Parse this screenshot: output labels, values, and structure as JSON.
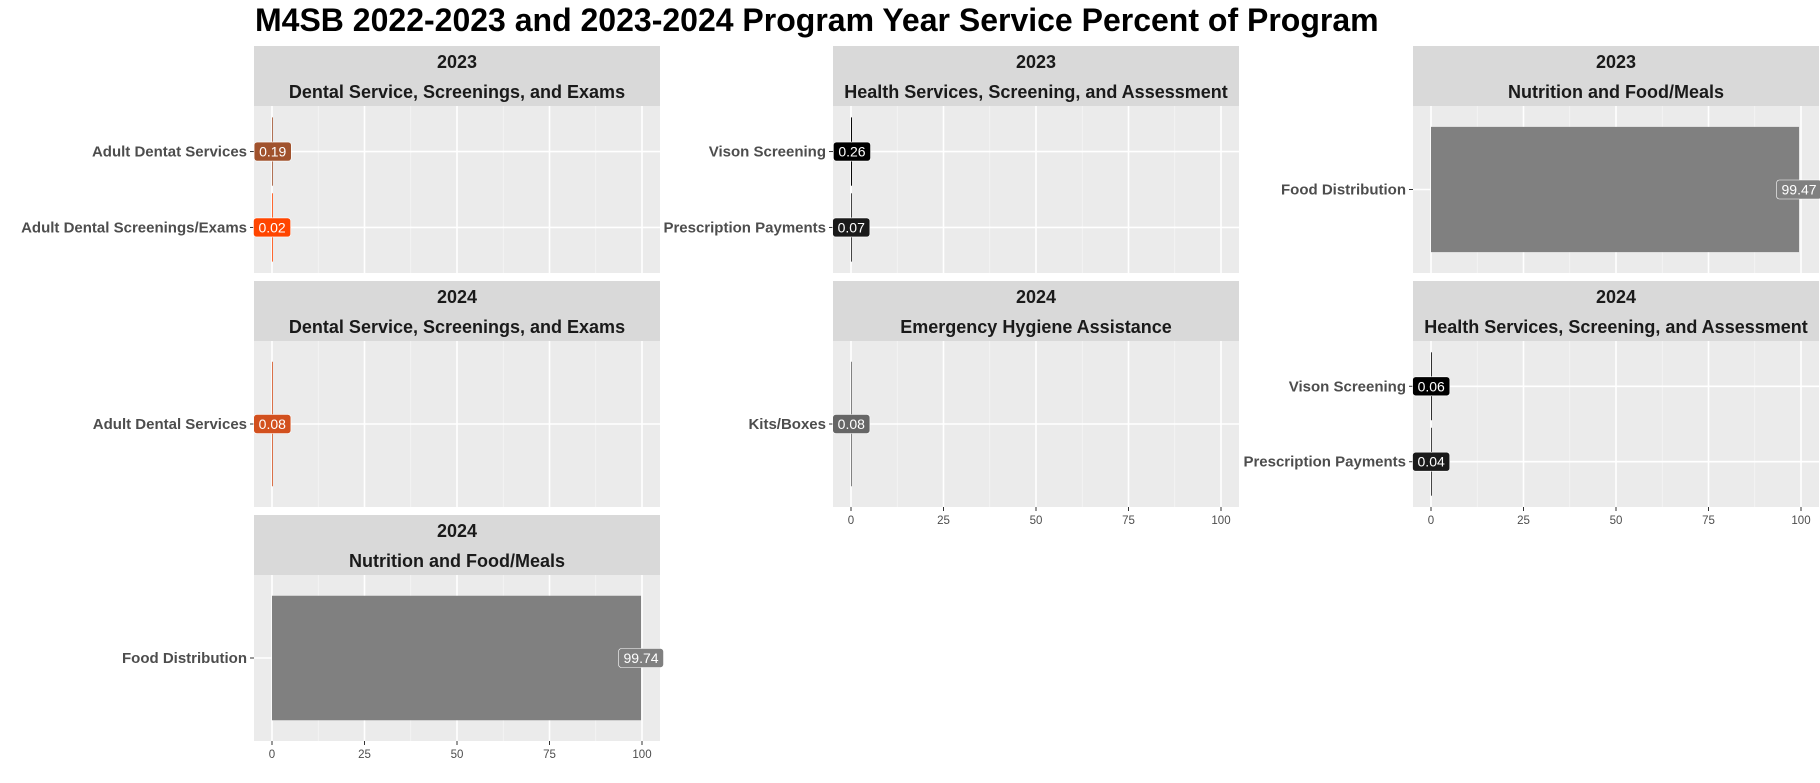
{
  "chart_data": {
    "type": "bar",
    "title": "M4SB 2022-2023 and 2023-2024 Program Year Service Percent of Program",
    "xlim": [
      0,
      100
    ],
    "x_ticks": [
      0,
      25,
      50,
      75,
      100
    ],
    "grid": true,
    "orientation": "horizontal",
    "panels": [
      {
        "year": "2023",
        "program": "Dental Service, Screenings, and Exams",
        "categories": [
          "Adult Dentat Services",
          "Adult Dental Screenings/Exams"
        ],
        "values": [
          0.19,
          0.02
        ],
        "labels": [
          "0.19",
          "0.02"
        ],
        "colors": [
          "#A0522D",
          "#FF4500"
        ]
      },
      {
        "year": "2023",
        "program": "Health Services, Screening, and Assessment",
        "categories": [
          "Vison Screening",
          "Prescription Payments"
        ],
        "values": [
          0.26,
          0.07
        ],
        "labels": [
          "0.26",
          "0.07"
        ],
        "colors": [
          "#000000",
          "#1a1a1a"
        ]
      },
      {
        "year": "2023",
        "program": "Nutrition and Food/Meals",
        "categories": [
          "Food Distribution"
        ],
        "values": [
          99.47
        ],
        "labels": [
          "99.47"
        ],
        "colors": [
          "#808080"
        ]
      },
      {
        "year": "2024",
        "program": "Dental Service, Screenings, and Exams",
        "categories": [
          "Adult Dental Services"
        ],
        "values": [
          0.08
        ],
        "labels": [
          "0.08"
        ],
        "colors": [
          "#D2501E"
        ]
      },
      {
        "year": "2024",
        "program": "Emergency Hygiene Assistance",
        "categories": [
          "Kits/Boxes"
        ],
        "values": [
          0.08
        ],
        "labels": [
          "0.08"
        ],
        "colors": [
          "#666666"
        ]
      },
      {
        "year": "2024",
        "program": "Health Services, Screening, and Assessment",
        "categories": [
          "Vison Screening",
          "Prescription Payments"
        ],
        "values": [
          0.06,
          0.04
        ],
        "labels": [
          "0.06",
          "0.04"
        ],
        "colors": [
          "#000000",
          "#1a1a1a"
        ]
      },
      {
        "year": "2024",
        "program": "Nutrition and Food/Meals",
        "categories": [
          "Food Distribution"
        ],
        "values": [
          99.74
        ],
        "labels": [
          "99.74"
        ],
        "colors": [
          "#808080"
        ]
      }
    ]
  }
}
